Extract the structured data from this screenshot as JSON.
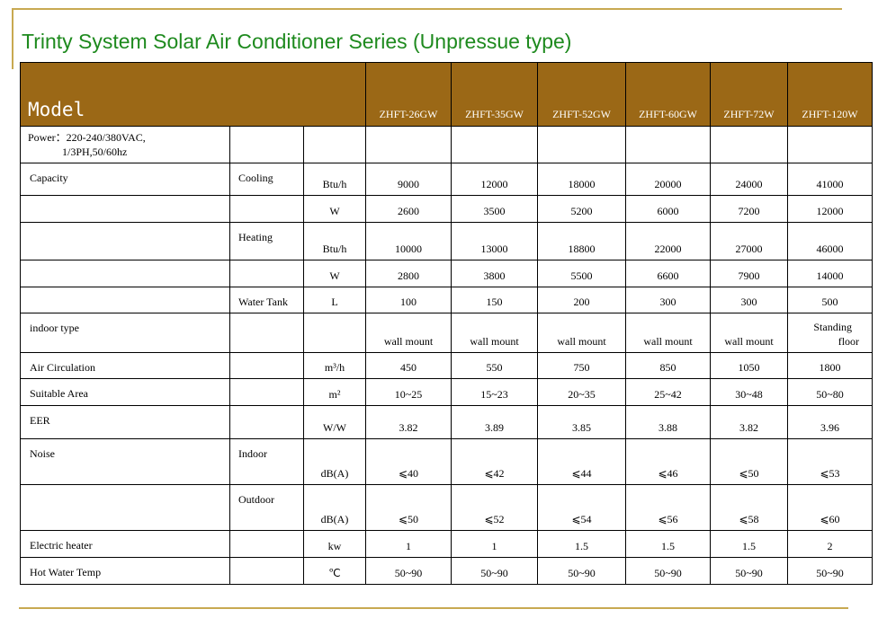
{
  "title": "Trinty System Solar Air Conditioner Series (Unpressue type)",
  "table": {
    "model_label": "Model",
    "models": [
      "ZHFT-26GW",
      "ZHFT-35GW",
      "ZHFT-52GW",
      "ZHFT-60GW",
      "ZHFT-72W",
      "ZHFT-120W"
    ],
    "power_line1": "Power：220-240/380VAC,",
    "power_line2": "1/3PH,50/60hz",
    "rows": [
      {
        "label": "Capacity",
        "sub": "Cooling",
        "unit": "Btu/h",
        "values": [
          "9000",
          "12000",
          "18000",
          "20000",
          "24000",
          "41000"
        ]
      },
      {
        "label": "",
        "sub": "",
        "unit": "W",
        "values": [
          "2600",
          "3500",
          "5200",
          "6000",
          "7200",
          "12000"
        ]
      },
      {
        "label": "",
        "sub": "Heating",
        "unit": "Btu/h",
        "values": [
          "10000",
          "13000",
          "18800",
          "22000",
          "27000",
          "46000"
        ]
      },
      {
        "label": "",
        "sub": "",
        "unit": "W",
        "values": [
          "2800",
          "3800",
          "5500",
          "6600",
          "7900",
          "14000"
        ]
      },
      {
        "label": "",
        "sub": "Water Tank",
        "unit": "L",
        "values": [
          "100",
          "150",
          "200",
          "300",
          "300",
          "500"
        ]
      },
      {
        "label": "indoor type",
        "sub": "",
        "unit": "",
        "values": [
          "wall mount",
          "wall mount",
          "wall mount",
          "wall mount",
          "wall mount",
          ""
        ],
        "last_line1": "Standing",
        "last_line2": "floor"
      },
      {
        "label": "Air Circulation",
        "sub": "",
        "unit": "m³/h",
        "values": [
          "450",
          "550",
          "750",
          "850",
          "1050",
          "1800"
        ]
      },
      {
        "label": "Suitable Area",
        "sub": "",
        "unit": "m²",
        "values": [
          "10~25",
          "15~23",
          "20~35",
          "25~42",
          "30~48",
          "50~80"
        ]
      },
      {
        "label": "EER",
        "sub": "",
        "unit": "W/W",
        "values": [
          "3.82",
          "3.89",
          "3.85",
          "3.88",
          "3.82",
          "3.96"
        ]
      },
      {
        "label": "Noise",
        "sub": "Indoor",
        "unit": "dB(A)",
        "values": [
          "⩽40",
          "⩽42",
          "⩽44",
          "⩽46",
          "⩽50",
          "⩽53"
        ]
      },
      {
        "label": "",
        "sub": "Outdoor",
        "unit": "dB(A)",
        "values": [
          "⩽50",
          "⩽52",
          "⩽54",
          "⩽56",
          "⩽58",
          "⩽60"
        ]
      },
      {
        "label": "Electric heater",
        "sub": "",
        "unit": "kw",
        "values": [
          "1",
          "1",
          "1.5",
          "1.5",
          "1.5",
          "2"
        ]
      },
      {
        "label": "Hot Water Temp",
        "sub": "",
        "unit": "℃",
        "values": [
          "50~90",
          "50~90",
          "50~90",
          "50~90",
          "50~90",
          "50~90"
        ]
      }
    ]
  }
}
